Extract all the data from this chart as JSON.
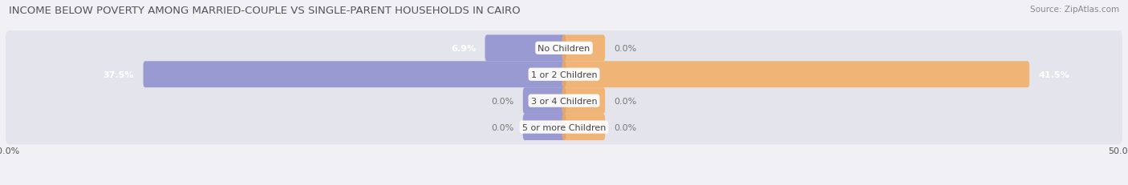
{
  "title": "INCOME BELOW POVERTY AMONG MARRIED-COUPLE VS SINGLE-PARENT HOUSEHOLDS IN CAIRO",
  "source": "Source: ZipAtlas.com",
  "categories": [
    "No Children",
    "1 or 2 Children",
    "3 or 4 Children",
    "5 or more Children"
  ],
  "married_values": [
    6.9,
    37.5,
    0.0,
    0.0
  ],
  "single_values": [
    0.0,
    41.5,
    0.0,
    0.0
  ],
  "married_color": "#8888cc",
  "single_color": "#f5a85a",
  "bar_bg_color": "#e4e4ec",
  "background_color": "#f0f0f5",
  "xlim_left": -50,
  "xlim_right": 50,
  "bar_height": 0.72,
  "stub_size": 3.5,
  "title_fontsize": 9.5,
  "source_fontsize": 7.5,
  "label_fontsize": 8,
  "category_fontsize": 8,
  "legend_fontsize": 8
}
